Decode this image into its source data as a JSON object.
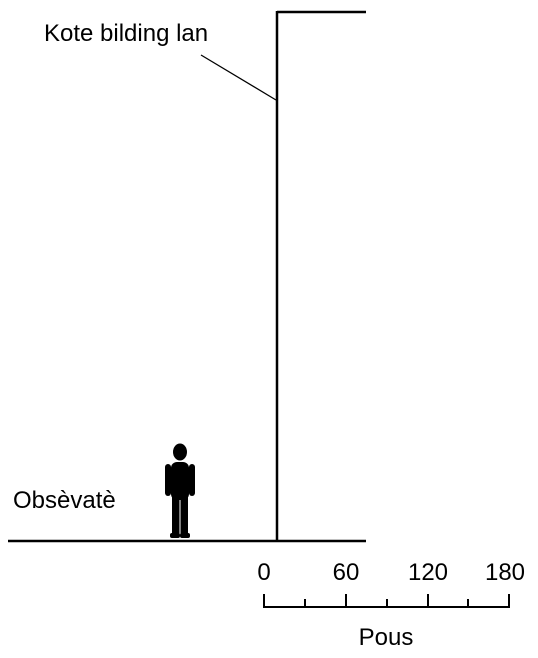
{
  "labels": {
    "building_side": "Kote bilding lan",
    "observer": "Obsèvatè"
  },
  "scale": {
    "ticks": [
      "0",
      "60",
      "120",
      "180"
    ],
    "unit": "Pous"
  },
  "icons": {
    "observer_figure": "person-silhouette-icon"
  },
  "colors": {
    "ink": "#000000",
    "background": "#ffffff"
  }
}
